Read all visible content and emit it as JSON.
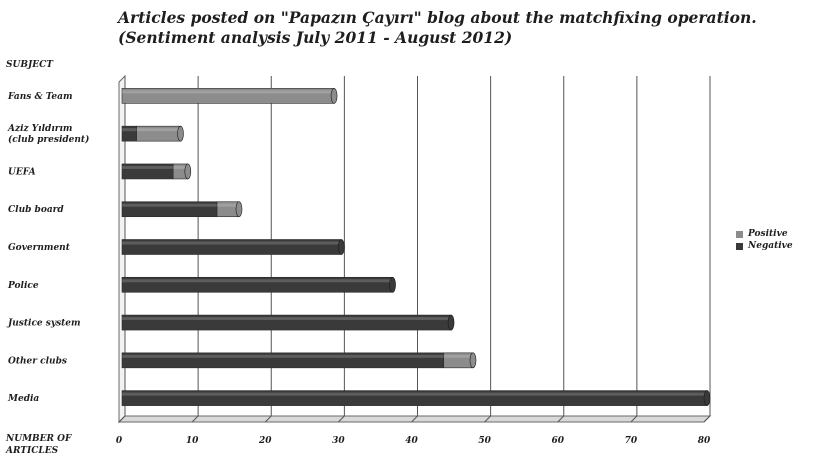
{
  "chart_data": {
    "type": "bar",
    "orientation": "horizontal",
    "stacked": true,
    "title_lines": [
      "Articles posted on \"Papazın Çayırı\" blog about the matchfixing operation.",
      "(Sentiment analysis July 2011 - August 2012)"
    ],
    "category_axis_title": "SUBJECT",
    "value_axis_title": "NUMBER OF ARTICLES",
    "categories": [
      [
        "Fans & Team"
      ],
      [
        "Aziz Yıldırım",
        "(club president)"
      ],
      [
        "UEFA"
      ],
      [
        "Club board"
      ],
      [
        "Government"
      ],
      [
        "Police"
      ],
      [
        "Justice system"
      ],
      [
        "Other clubs"
      ],
      [
        "Media"
      ]
    ],
    "series": [
      {
        "name": "Negative",
        "color": "#3a3a3a",
        "values": [
          0,
          2,
          7,
          13,
          30,
          37,
          45,
          44,
          80
        ]
      },
      {
        "name": "Positive",
        "color": "#8c8c8c",
        "values": [
          29,
          6,
          2,
          3,
          0,
          0,
          0,
          4,
          0
        ]
      }
    ],
    "xlim": [
      0,
      80
    ],
    "xticks": [
      0,
      10,
      20,
      30,
      40,
      50,
      60,
      70,
      80
    ],
    "grid": true,
    "legend_position": "right"
  }
}
